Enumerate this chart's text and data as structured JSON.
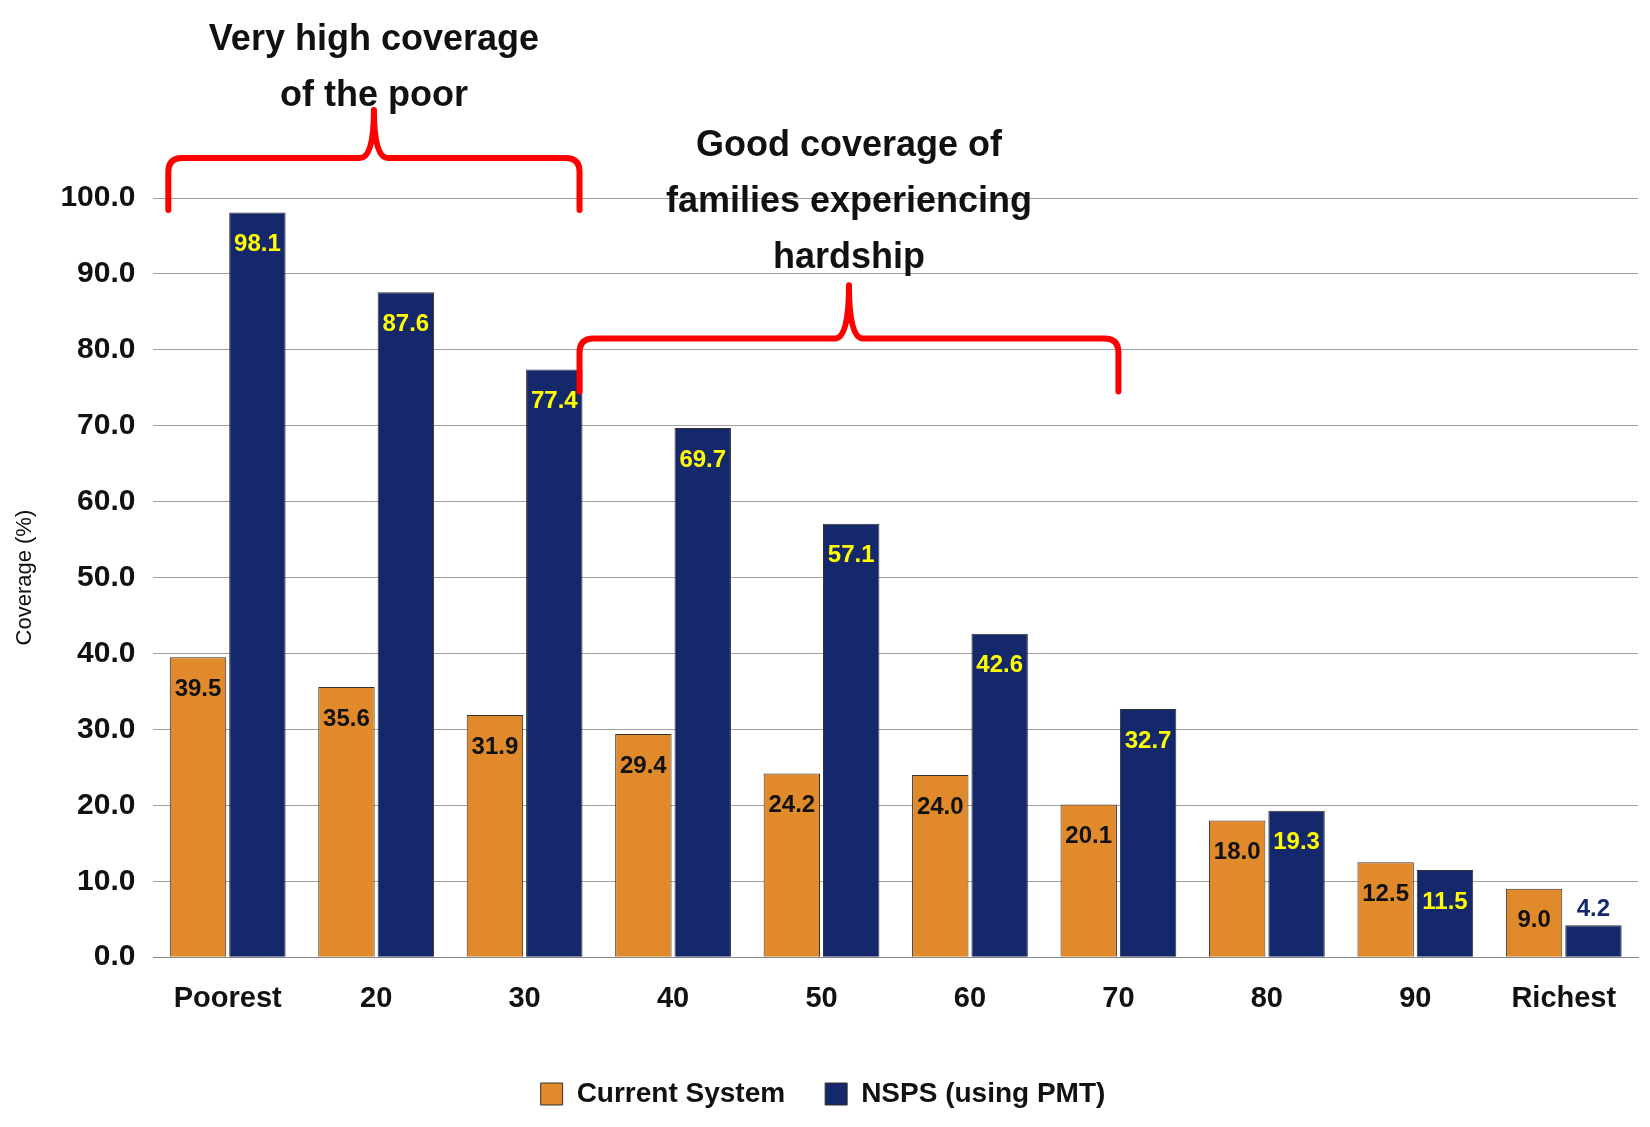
{
  "chart_data": {
    "type": "bar",
    "ylabel": "Coverage (%)",
    "categories": [
      "Poorest",
      "20",
      "30",
      "40",
      "50",
      "60",
      "70",
      "80",
      "90",
      "Richest"
    ],
    "series": [
      {
        "name": "Current System",
        "color": "#e08a2c",
        "values": [
          39.5,
          35.6,
          31.9,
          29.4,
          24.2,
          24.0,
          20.1,
          18.0,
          12.5,
          9.0
        ],
        "value_labels": [
          "39.5",
          "35.6",
          "31.9",
          "29.4",
          "24.2",
          "24.0",
          "20.1",
          "18.0",
          "12.5",
          "9.0"
        ]
      },
      {
        "name": "NSPS (using PMT)",
        "color": "#14286b",
        "values": [
          98.1,
          87.6,
          77.4,
          69.7,
          57.1,
          42.6,
          32.7,
          19.3,
          11.5,
          4.2
        ],
        "value_labels": [
          "98.1",
          "87.6",
          "77.4",
          "69.7",
          "57.1",
          "42.6",
          "32.7",
          "19.3",
          "11.5",
          "4.2"
        ]
      }
    ],
    "ylim": [
      0,
      100
    ],
    "yticks": [
      {
        "value": 0,
        "label": "0.0"
      },
      {
        "value": 10,
        "label": "10.0"
      },
      {
        "value": 20,
        "label": "20.0"
      },
      {
        "value": 30,
        "label": "30.0"
      },
      {
        "value": 40,
        "label": "40.0"
      },
      {
        "value": 50,
        "label": "50.0"
      },
      {
        "value": 60,
        "label": "60.0"
      },
      {
        "value": 70,
        "label": "70.0"
      },
      {
        "value": 80,
        "label": "80.0"
      },
      {
        "value": 90,
        "label": "90.0"
      },
      {
        "value": 100,
        "label": "100.0"
      }
    ],
    "grid": "y",
    "legend": "bottom",
    "annotations": [
      "Very high coverage of the poor",
      "Good coverage of families experiencing hardship"
    ]
  }
}
